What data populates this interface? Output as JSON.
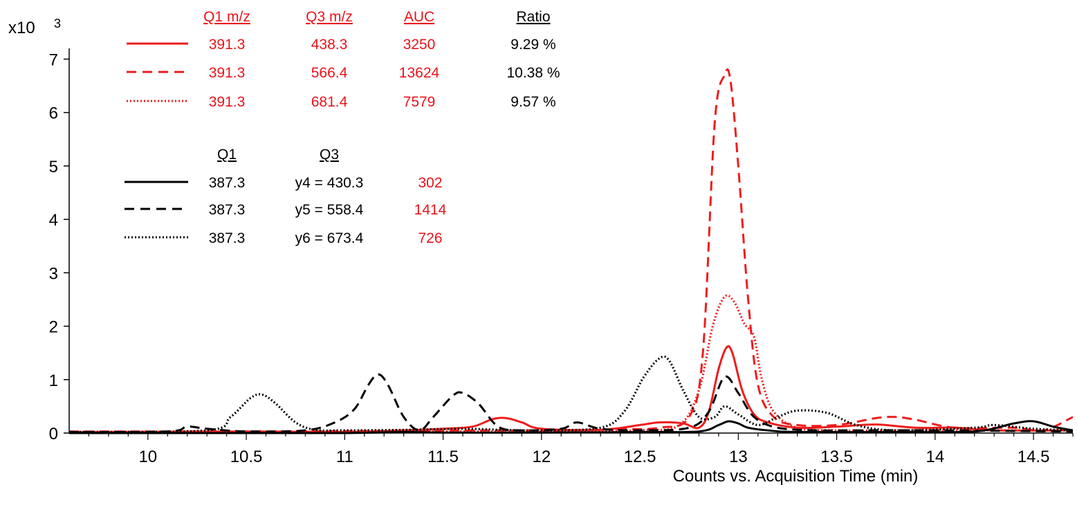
{
  "chart_data": {
    "type": "line",
    "multiplier_label": "x10",
    "multiplier_exponent": "3",
    "xlabel": "Counts vs. Acquisition Time (min)",
    "ylabel": "",
    "xlim": [
      9.6,
      14.7
    ],
    "ylim": [
      0,
      7.2
    ],
    "x_ticks": [
      "10",
      "10.5",
      "11",
      "11.5",
      "12",
      "12.5",
      "13",
      "13.5",
      "14",
      "14.5"
    ],
    "y_ticks": [
      "0",
      "1",
      "2",
      "3",
      "4",
      "5",
      "6",
      "7"
    ],
    "grid": false,
    "legend": {
      "heavy_headers": [
        "Q1  m/z",
        "Q3  m/z",
        "AUC",
        "Ratio"
      ],
      "heavy_rows": [
        {
          "q1": "391.3",
          "q3": "438.3",
          "auc": "3250",
          "ratio": "9.29 %"
        },
        {
          "q1": "391.3",
          "q3": "566.4",
          "auc": "13624",
          "ratio": "10.38 %"
        },
        {
          "q1": "391.3",
          "q3": "681.4",
          "auc": "7579",
          "ratio": "9.57 %"
        }
      ],
      "light_headers": [
        "Q1",
        "Q3"
      ],
      "light_rows": [
        {
          "q1": "387.3",
          "q3": "y4 = 430.3",
          "auc": "302"
        },
        {
          "q1": "387.3",
          "q3": "y5 = 558.4",
          "auc": "1414"
        },
        {
          "q1": "387.3",
          "q3": "y6 = 673.4",
          "auc": "726"
        }
      ]
    },
    "colors": {
      "heavy": "#ee1c1c",
      "light": "#000000",
      "text_red": "#e8141b"
    },
    "series": [
      {
        "color": "#ee1c1c",
        "dash": "solid",
        "points": [
          [
            9.6,
            0.02
          ],
          [
            10.5,
            0.03
          ],
          [
            11.0,
            0.02
          ],
          [
            11.3,
            0.05
          ],
          [
            11.5,
            0.08
          ],
          [
            11.65,
            0.12
          ],
          [
            11.75,
            0.26
          ],
          [
            11.82,
            0.28
          ],
          [
            11.9,
            0.2
          ],
          [
            12.0,
            0.08
          ],
          [
            12.3,
            0.06
          ],
          [
            12.5,
            0.15
          ],
          [
            12.6,
            0.2
          ],
          [
            12.72,
            0.18
          ],
          [
            12.8,
            0.1
          ],
          [
            12.85,
            0.4
          ],
          [
            12.9,
            1.2
          ],
          [
            12.94,
            1.6
          ],
          [
            12.97,
            1.5
          ],
          [
            13.02,
            0.8
          ],
          [
            13.08,
            0.35
          ],
          [
            13.15,
            0.2
          ],
          [
            13.3,
            0.1
          ],
          [
            13.5,
            0.12
          ],
          [
            13.7,
            0.16
          ],
          [
            13.9,
            0.1
          ],
          [
            14.1,
            0.1
          ],
          [
            14.3,
            0.05
          ],
          [
            14.7,
            0.05
          ]
        ]
      },
      {
        "color": "#ee1c1c",
        "dash": "dashed",
        "points": [
          [
            9.6,
            0.03
          ],
          [
            10.5,
            0.03
          ],
          [
            11.2,
            0.04
          ],
          [
            11.6,
            0.05
          ],
          [
            12.0,
            0.05
          ],
          [
            12.4,
            0.07
          ],
          [
            12.6,
            0.1
          ],
          [
            12.75,
            0.3
          ],
          [
            12.82,
            1.5
          ],
          [
            12.88,
            5.8
          ],
          [
            12.93,
            6.7
          ],
          [
            12.96,
            6.6
          ],
          [
            13.0,
            5.0
          ],
          [
            13.05,
            2.5
          ],
          [
            13.1,
            0.9
          ],
          [
            13.18,
            0.3
          ],
          [
            13.3,
            0.15
          ],
          [
            13.5,
            0.15
          ],
          [
            13.7,
            0.28
          ],
          [
            13.8,
            0.3
          ],
          [
            13.9,
            0.25
          ],
          [
            14.1,
            0.1
          ],
          [
            14.4,
            0.1
          ],
          [
            14.55,
            0.05
          ],
          [
            14.7,
            0.3
          ]
        ]
      },
      {
        "color": "#ee1c1c",
        "dash": "dotted",
        "points": [
          [
            9.6,
            0.02
          ],
          [
            10.5,
            0.02
          ],
          [
            11.0,
            0.02
          ],
          [
            11.5,
            0.03
          ],
          [
            12.0,
            0.03
          ],
          [
            12.5,
            0.05
          ],
          [
            12.7,
            0.15
          ],
          [
            12.8,
            0.8
          ],
          [
            12.87,
            2.0
          ],
          [
            12.93,
            2.55
          ],
          [
            12.98,
            2.45
          ],
          [
            13.03,
            2.05
          ],
          [
            13.08,
            1.8
          ],
          [
            13.12,
            1.0
          ],
          [
            13.18,
            0.4
          ],
          [
            13.3,
            0.1
          ],
          [
            13.5,
            0.05
          ],
          [
            14.0,
            0.05
          ],
          [
            14.7,
            0.05
          ]
        ]
      },
      {
        "color": "#000000",
        "dash": "solid",
        "points": [
          [
            9.6,
            0.0
          ],
          [
            10.5,
            0.0
          ],
          [
            11.0,
            0.0
          ],
          [
            11.3,
            0.02
          ],
          [
            11.5,
            0.01
          ],
          [
            12.0,
            0.01
          ],
          [
            12.5,
            0.02
          ],
          [
            12.8,
            0.03
          ],
          [
            12.9,
            0.15
          ],
          [
            12.95,
            0.22
          ],
          [
            13.0,
            0.18
          ],
          [
            13.05,
            0.1
          ],
          [
            13.15,
            0.05
          ],
          [
            13.3,
            0.02
          ],
          [
            13.8,
            0.02
          ],
          [
            14.2,
            0.03
          ],
          [
            14.4,
            0.18
          ],
          [
            14.5,
            0.22
          ],
          [
            14.6,
            0.12
          ],
          [
            14.7,
            0.05
          ]
        ]
      },
      {
        "color": "#000000",
        "dash": "dashed",
        "points": [
          [
            9.6,
            0.02
          ],
          [
            10.1,
            0.03
          ],
          [
            10.2,
            0.12
          ],
          [
            10.3,
            0.08
          ],
          [
            10.5,
            0.03
          ],
          [
            10.8,
            0.05
          ],
          [
            10.95,
            0.2
          ],
          [
            11.05,
            0.45
          ],
          [
            11.12,
            0.9
          ],
          [
            11.17,
            1.1
          ],
          [
            11.22,
            0.9
          ],
          [
            11.3,
            0.3
          ],
          [
            11.38,
            0.05
          ],
          [
            11.45,
            0.3
          ],
          [
            11.55,
            0.7
          ],
          [
            11.6,
            0.75
          ],
          [
            11.68,
            0.55
          ],
          [
            11.78,
            0.12
          ],
          [
            11.9,
            0.05
          ],
          [
            12.1,
            0.08
          ],
          [
            12.18,
            0.2
          ],
          [
            12.3,
            0.08
          ],
          [
            12.5,
            0.05
          ],
          [
            12.75,
            0.1
          ],
          [
            12.85,
            0.4
          ],
          [
            12.93,
            1.05
          ],
          [
            13.0,
            0.75
          ],
          [
            13.08,
            0.3
          ],
          [
            13.2,
            0.1
          ],
          [
            13.4,
            0.05
          ],
          [
            13.6,
            0.05
          ],
          [
            14.0,
            0.05
          ],
          [
            14.7,
            0.03
          ]
        ]
      },
      {
        "color": "#000000",
        "dash": "dotted",
        "points": [
          [
            9.6,
            0.02
          ],
          [
            10.3,
            0.05
          ],
          [
            10.42,
            0.3
          ],
          [
            10.52,
            0.65
          ],
          [
            10.58,
            0.72
          ],
          [
            10.65,
            0.55
          ],
          [
            10.75,
            0.2
          ],
          [
            10.85,
            0.06
          ],
          [
            11.0,
            0.05
          ],
          [
            11.3,
            0.06
          ],
          [
            11.6,
            0.08
          ],
          [
            11.8,
            0.06
          ],
          [
            12.0,
            0.05
          ],
          [
            12.3,
            0.1
          ],
          [
            12.42,
            0.4
          ],
          [
            12.52,
            1.05
          ],
          [
            12.6,
            1.4
          ],
          [
            12.65,
            1.35
          ],
          [
            12.72,
            0.8
          ],
          [
            12.8,
            0.3
          ],
          [
            12.88,
            0.3
          ],
          [
            12.93,
            0.5
          ],
          [
            13.0,
            0.35
          ],
          [
            13.1,
            0.15
          ],
          [
            13.2,
            0.3
          ],
          [
            13.3,
            0.42
          ],
          [
            13.45,
            0.38
          ],
          [
            13.6,
            0.15
          ],
          [
            13.8,
            0.05
          ],
          [
            14.2,
            0.1
          ],
          [
            14.3,
            0.15
          ],
          [
            14.5,
            0.08
          ],
          [
            14.7,
            0.05
          ]
        ]
      }
    ]
  }
}
